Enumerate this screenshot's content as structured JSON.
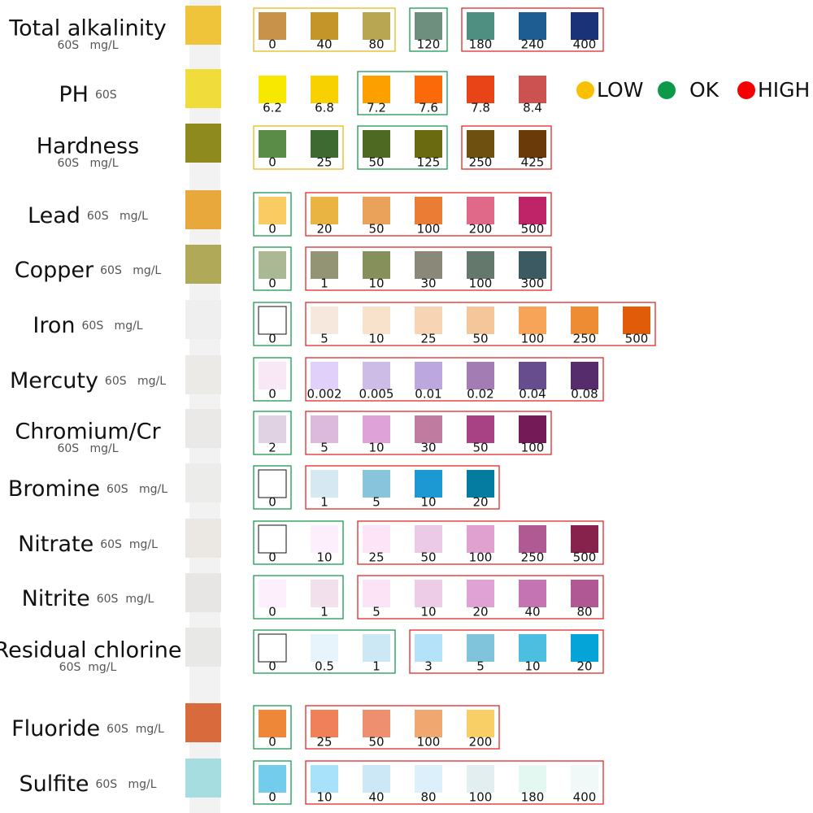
{
  "legend": [
    {
      "label": "LOW",
      "status": "low"
    },
    {
      "label": "OK",
      "status": "ok"
    },
    {
      "label": "HIGH",
      "status": "high"
    }
  ],
  "rows": [
    {
      "name": "Total alkalinity",
      "unit": "60S   mg/L",
      "pad": "#f0c43a",
      "groups": [
        {
          "status": "low",
          "swatches": [
            {
              "label": "0",
              "color": "#c8924a"
            },
            {
              "label": "40",
              "color": "#c4962a"
            },
            {
              "label": "80",
              "color": "#b8a652"
            }
          ]
        },
        {
          "status": "ok",
          "swatches": [
            {
              "label": "120",
              "color": "#6f8f7e"
            }
          ]
        },
        {
          "status": "high",
          "swatches": [
            {
              "label": "180",
              "color": "#4f8f82"
            },
            {
              "label": "240",
              "color": "#1e5d92"
            },
            {
              "label": "400",
              "color": "#1a3278"
            }
          ]
        }
      ]
    },
    {
      "name": "PH",
      "unit": "60S",
      "pad": "#f0dc3a",
      "groups": [
        {
          "status": "none",
          "swatches": [
            {
              "label": "6.2",
              "color": "#f8e800"
            },
            {
              "label": "6.8",
              "color": "#f8d200"
            }
          ]
        },
        {
          "status": "ok",
          "swatches": [
            {
              "label": "7.2",
              "color": "#fca000"
            },
            {
              "label": "7.6",
              "color": "#fa6a08"
            }
          ]
        },
        {
          "status": "none",
          "swatches": [
            {
              "label": "7.8",
              "color": "#e84418"
            },
            {
              "label": "8.4",
              "color": "#cc5252"
            }
          ]
        }
      ]
    },
    {
      "name": "Hardness",
      "unit": "60S   mg/L",
      "pad": "#8e8a1e",
      "groups": [
        {
          "status": "low",
          "swatches": [
            {
              "label": "0",
              "color": "#5a8c48"
            },
            {
              "label": "25",
              "color": "#3c6a30"
            }
          ]
        },
        {
          "status": "ok",
          "swatches": [
            {
              "label": "50",
              "color": "#4e6a22"
            },
            {
              "label": "125",
              "color": "#6a6a10"
            }
          ]
        },
        {
          "status": "high",
          "swatches": [
            {
              "label": "250",
              "color": "#6e5010"
            },
            {
              "label": "425",
              "color": "#6a3a08"
            }
          ]
        }
      ]
    },
    {
      "name": "Lead",
      "unit": "60S   mg/L",
      "pad": "#e8a83c",
      "groups": [
        {
          "status": "ok",
          "swatches": [
            {
              "label": "0",
              "color": "#f8cc60"
            }
          ]
        },
        {
          "status": "high",
          "swatches": [
            {
              "label": "20",
              "color": "#eab442"
            },
            {
              "label": "50",
              "color": "#eaa25a"
            },
            {
              "label": "100",
              "color": "#ea7c34"
            },
            {
              "label": "200",
              "color": "#e06888"
            },
            {
              "label": "500",
              "color": "#c02468"
            }
          ]
        }
      ]
    },
    {
      "name": "Copper",
      "unit": "60S   mg/L",
      "pad": "#b0aa58",
      "groups": [
        {
          "status": "ok",
          "swatches": [
            {
              "label": "0",
              "color": "#abb894"
            }
          ]
        },
        {
          "status": "high",
          "swatches": [
            {
              "label": "1",
              "color": "#939474"
            },
            {
              "label": "10",
              "color": "#86905a"
            },
            {
              "label": "30",
              "color": "#8a8878"
            },
            {
              "label": "100",
              "color": "#64786c"
            },
            {
              "label": "300",
              "color": "#3c5a62"
            }
          ]
        }
      ]
    },
    {
      "name": "Iron",
      "unit": "60S   mg/L",
      "pad": "#efefef",
      "groups": [
        {
          "status": "ok",
          "swatches": [
            {
              "label": "0",
              "color": "#ffffff"
            }
          ]
        },
        {
          "status": "high",
          "swatches": [
            {
              "label": "5",
              "color": "#f6e8dc"
            },
            {
              "label": "10",
              "color": "#f8e2cc"
            },
            {
              "label": "25",
              "color": "#f6d4b4"
            },
            {
              "label": "50",
              "color": "#f4c69a"
            },
            {
              "label": "100",
              "color": "#f8a458"
            },
            {
              "label": "250",
              "color": "#ee8c34"
            },
            {
              "label": "500",
              "color": "#e05c08"
            }
          ]
        }
      ]
    },
    {
      "name": "Mercuty",
      "unit": "60S   mg/L",
      "pad": "#eceae6",
      "groups": [
        {
          "status": "ok",
          "swatches": [
            {
              "label": "0",
              "color": "#f8e8f6"
            }
          ]
        },
        {
          "status": "high",
          "swatches": [
            {
              "label": "0.002",
              "color": "#e0d0fa"
            },
            {
              "label": "0.005",
              "color": "#cdbce6"
            },
            {
              "label": "0.01",
              "color": "#bca8de"
            },
            {
              "label": "0.02",
              "color": "#a27cb2"
            },
            {
              "label": "0.04",
              "color": "#674c8e"
            },
            {
              "label": "0.08",
              "color": "#572c6c"
            }
          ]
        }
      ]
    },
    {
      "name": "Chromium/Cr",
      "unit": "60S   mg/L",
      "pad": "#ebe8e8",
      "groups": [
        {
          "status": "ok",
          "swatches": [
            {
              "label": "2",
              "color": "#e0d2e2"
            }
          ]
        },
        {
          "status": "high",
          "swatches": [
            {
              "label": "5",
              "color": "#dcbade"
            },
            {
              "label": "10",
              "color": "#dea2d8"
            },
            {
              "label": "30",
              "color": "#c07ca0"
            },
            {
              "label": "50",
              "color": "#a84284"
            },
            {
              "label": "100",
              "color": "#741a56"
            }
          ]
        }
      ]
    },
    {
      "name": "Bromine",
      "unit": "60S   mg/L",
      "pad": "#ececea",
      "groups": [
        {
          "status": "ok",
          "swatches": [
            {
              "label": "0",
              "color": "#ffffff"
            }
          ]
        },
        {
          "status": "high",
          "swatches": [
            {
              "label": "1",
              "color": "#d6e8f2"
            },
            {
              "label": "5",
              "color": "#88c4dc"
            },
            {
              "label": "10",
              "color": "#1c98d2"
            },
            {
              "label": "20",
              "color": "#047ca0"
            }
          ]
        }
      ]
    },
    {
      "name": "Nitrate",
      "unit": "60S  mg/L",
      "pad": "#ebe7e3",
      "groups": [
        {
          "status": "ok",
          "swatches": [
            {
              "label": "0",
              "color": "#ffffff"
            },
            {
              "label": "10",
              "color": "#fdf0fc"
            }
          ]
        },
        {
          "status": "high",
          "swatches": [
            {
              "label": "25",
              "color": "#fde4f6"
            },
            {
              "label": "50",
              "color": "#eacae6"
            },
            {
              "label": "100",
              "color": "#e0a0d0"
            },
            {
              "label": "250",
              "color": "#b05a94"
            },
            {
              "label": "500",
              "color": "#86224c"
            }
          ]
        }
      ]
    },
    {
      "name": "Nitrite",
      "unit": "60S  mg/L",
      "pad": "#e8e6e4",
      "groups": [
        {
          "status": "ok",
          "swatches": [
            {
              "label": "0",
              "color": "#fdf0fc"
            },
            {
              "label": "1",
              "color": "#f2e0ec"
            }
          ]
        },
        {
          "status": "high",
          "swatches": [
            {
              "label": "5",
              "color": "#fce4f6"
            },
            {
              "label": "10",
              "color": "#eccce6"
            },
            {
              "label": "20",
              "color": "#e0a2d4"
            },
            {
              "label": "40",
              "color": "#c474b2"
            },
            {
              "label": "80",
              "color": "#b05894"
            }
          ]
        }
      ]
    },
    {
      "name": "Residual chlorine",
      "unit": "60S  mg/L",
      "pad": "#e8e8e6",
      "groups": [
        {
          "status": "ok",
          "swatches": [
            {
              "label": "0",
              "color": "#ffffff"
            },
            {
              "label": "0.5",
              "color": "#e8f4fc"
            },
            {
              "label": "1",
              "color": "#cce8f4"
            }
          ]
        },
        {
          "status": "high",
          "swatches": [
            {
              "label": "3",
              "color": "#b4e2f8"
            },
            {
              "label": "5",
              "color": "#80c4dc"
            },
            {
              "label": "10",
              "color": "#4cbee0"
            },
            {
              "label": "20",
              "color": "#04a4d8"
            }
          ]
        }
      ]
    },
    {
      "name": "Fluoride",
      "unit": "60S  mg/L",
      "pad": "#d86a3c",
      "groups": [
        {
          "status": "ok",
          "swatches": [
            {
              "label": "0",
              "color": "#ee8838"
            }
          ]
        },
        {
          "status": "high",
          "swatches": [
            {
              "label": "25",
              "color": "#f08058"
            },
            {
              "label": "50",
              "color": "#ee9070"
            },
            {
              "label": "100",
              "color": "#f0a870"
            },
            {
              "label": "200",
              "color": "#f8ce66"
            }
          ]
        }
      ]
    },
    {
      "name": "Sulfite",
      "unit": "60S   mg/L",
      "pad": "#a6dde0",
      "groups": [
        {
          "status": "ok",
          "swatches": [
            {
              "label": "0",
              "color": "#74ccec"
            }
          ]
        },
        {
          "status": "high",
          "swatches": [
            {
              "label": "10",
              "color": "#a8e2fa"
            },
            {
              "label": "40",
              "color": "#cce8f6"
            },
            {
              "label": "80",
              "color": "#dcf0fc"
            },
            {
              "label": "100",
              "color": "#e2eef0"
            },
            {
              "label": "180",
              "color": "#e4f8f2"
            },
            {
              "label": "400",
              "color": "#f0f8f8"
            }
          ]
        }
      ]
    }
  ]
}
